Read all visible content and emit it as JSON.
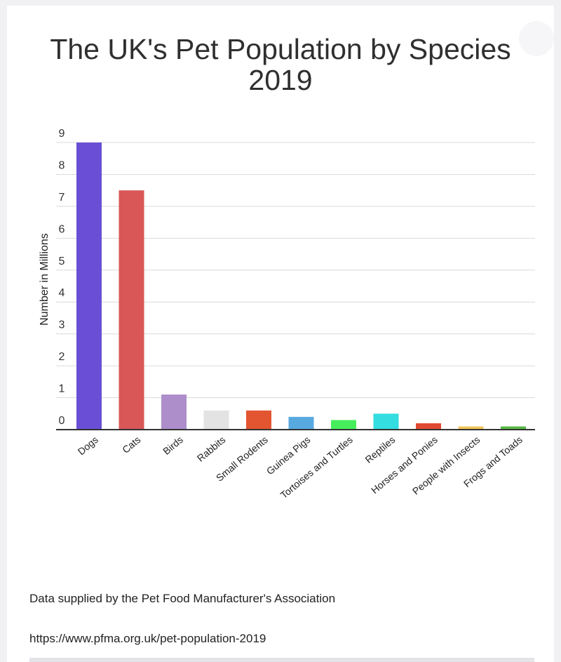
{
  "chart_data": {
    "type": "bar",
    "title_line1": "The UK's Pet Population by Species",
    "title_line2": "2019",
    "xlabel": "",
    "ylabel": "Number in Millions",
    "ylim": [
      0,
      9
    ],
    "yticks": [
      "0",
      "1",
      "2",
      "3",
      "4",
      "5",
      "6",
      "7",
      "8",
      "9"
    ],
    "grid": true,
    "legend": "none",
    "categories": [
      "Dogs",
      "Cats",
      "Birds",
      "Rabbits",
      "Small Rodents",
      "Guinea Pigs",
      "Tortoises and Turtles",
      "Reptiles",
      "Horses and Ponies",
      "People with Insects",
      "Frogs and Toads"
    ],
    "values": [
      9,
      7.5,
      1.1,
      0.6,
      0.6,
      0.4,
      0.3,
      0.5,
      0.2,
      0.1,
      0.1
    ],
    "colors": [
      "#6a4fd6",
      "#d95757",
      "#ad8ecb",
      "#e3e3e3",
      "#e35530",
      "#58a9e0",
      "#46ee5c",
      "#33dde0",
      "#e14a32",
      "#f2c35a",
      "#54b844"
    ]
  },
  "footer": {
    "source": "Data supplied by the Pet Food Manufacturer's Association",
    "url": "https://www.pfma.org.uk/pet-population-2019"
  }
}
